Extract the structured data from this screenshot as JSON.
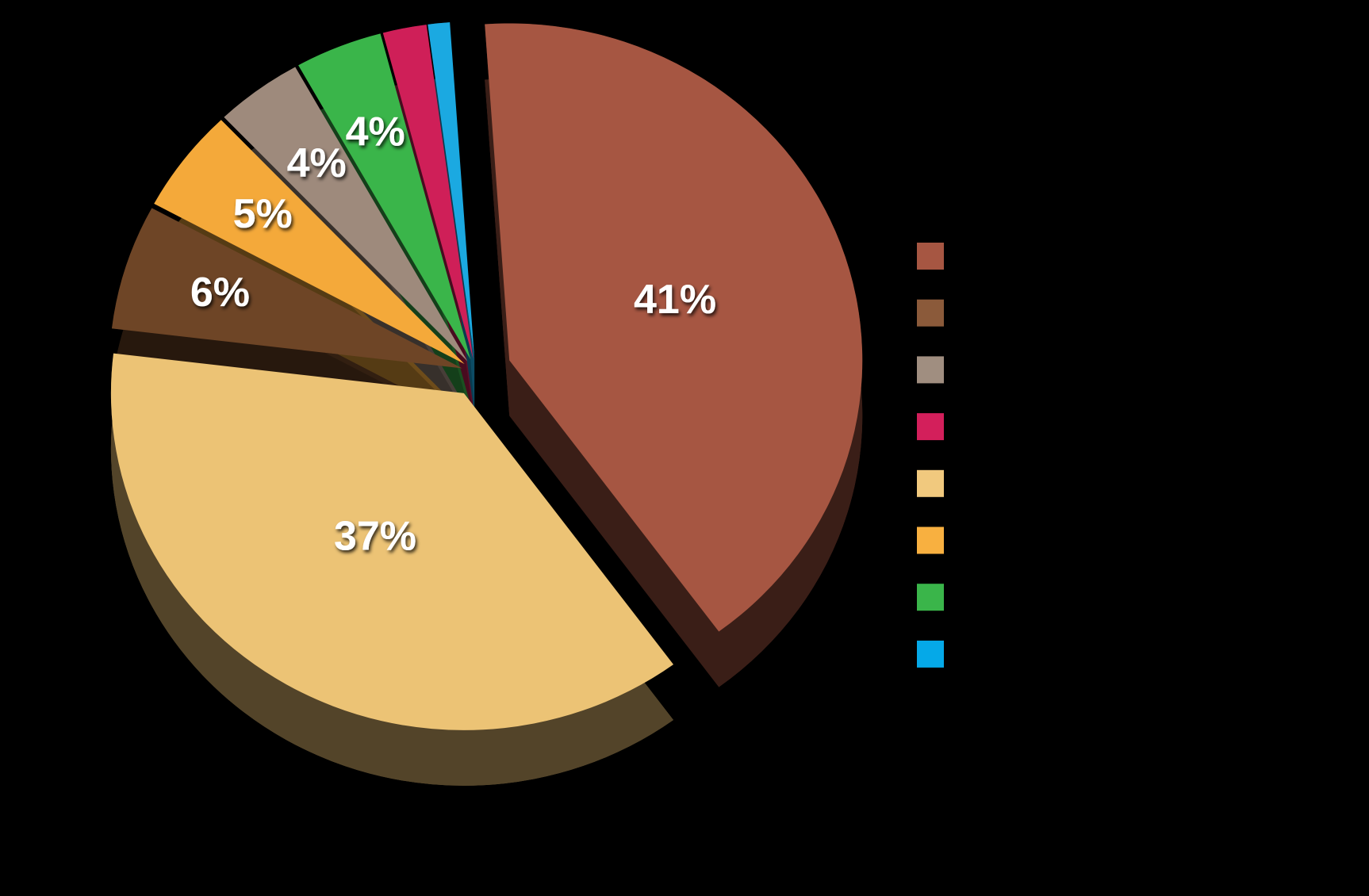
{
  "chart_data": {
    "type": "pie",
    "categories": [
      null,
      null,
      null,
      null,
      null,
      null,
      null,
      null
    ],
    "values": [
      41,
      37,
      6,
      5,
      4,
      4,
      2,
      1
    ],
    "value_labels": [
      "41%",
      "37%",
      "6%",
      "5%",
      "4%",
      "4%",
      null,
      null
    ],
    "colors": [
      "#a65642",
      "#ecc375",
      "#6e4526",
      "#f4a93a",
      "#9e8a7c",
      "#3ab54a",
      "#cf1f58",
      "#1ba9e1"
    ],
    "legend_colors": [
      "#a65642",
      "#8b5a3a",
      "#a08e80",
      "#d31f5b",
      "#f1c97e",
      "#f8b040",
      "#3ab54a",
      "#05a9e8"
    ]
  }
}
